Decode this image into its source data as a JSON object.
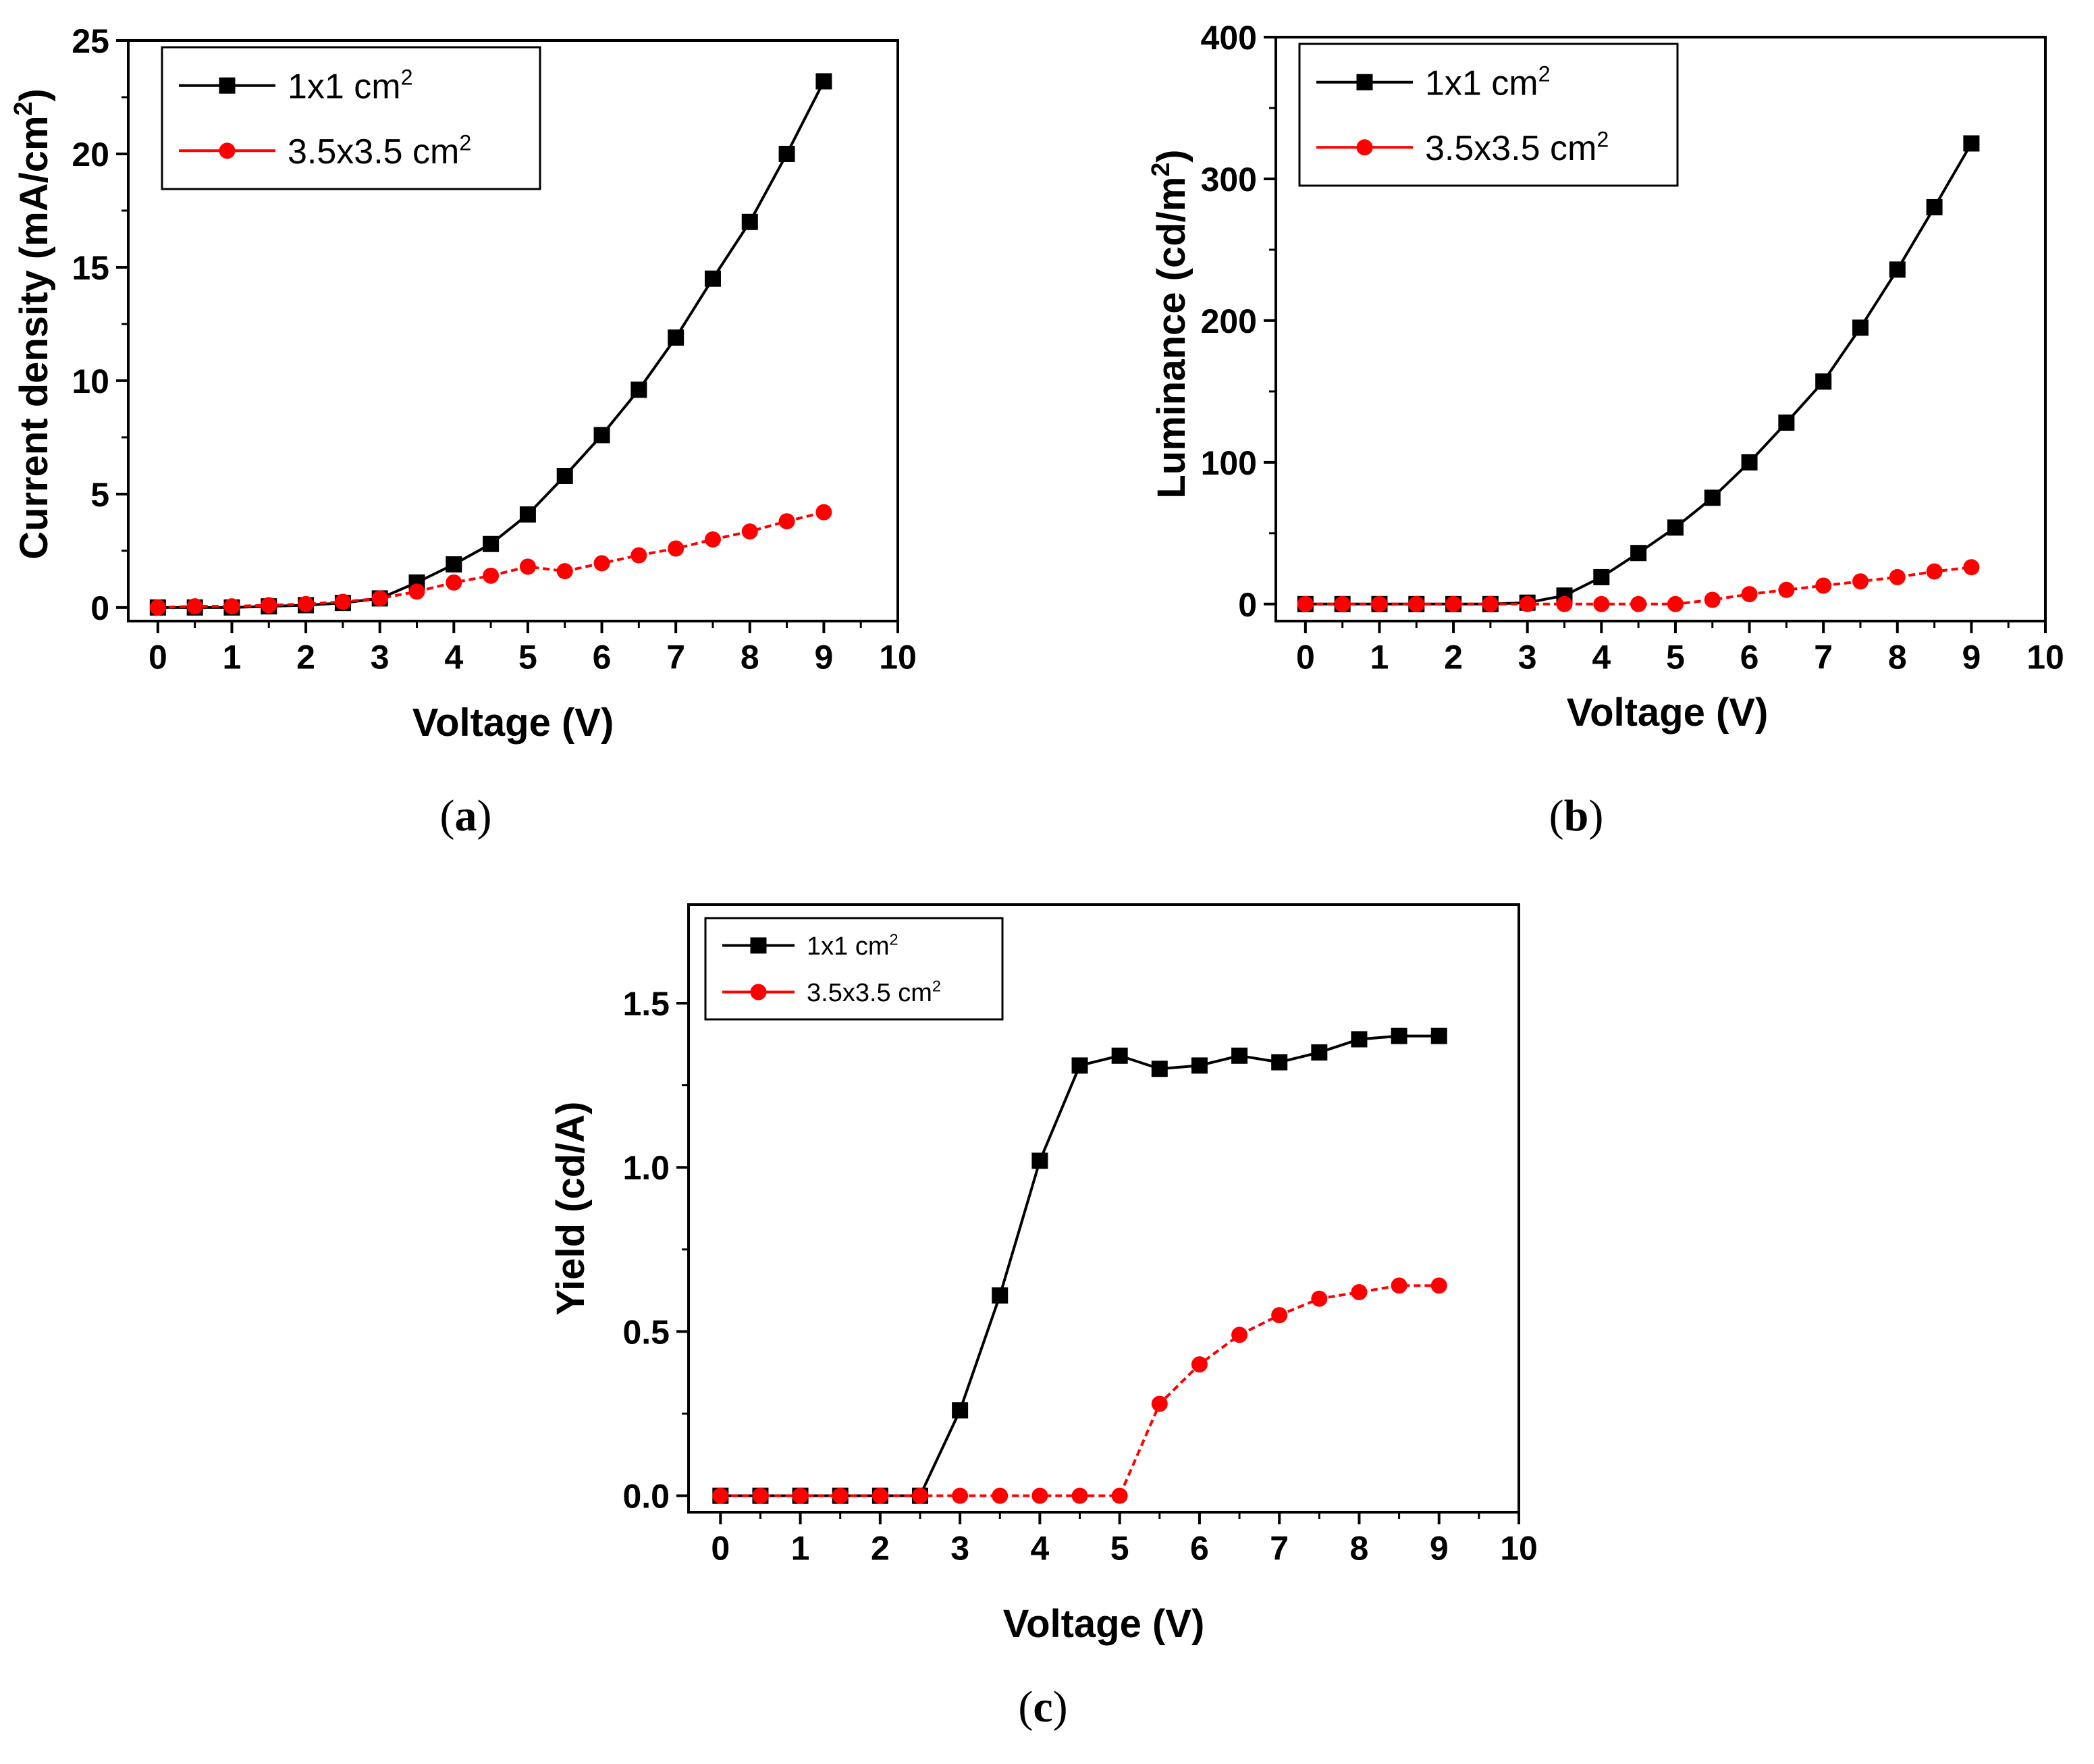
{
  "chart_data": [
    {
      "id": "a",
      "type": "line",
      "caption_prefix": "(",
      "caption_letter": "a",
      "caption_suffix": ")",
      "xlabel": "Voltage (V)",
      "ylabel": "Current density (mA/cm",
      "ylabel_sup": "2",
      "ylabel_tail": ")",
      "xlim": [
        -0.4,
        10
      ],
      "ylim": [
        -0.6,
        25
      ],
      "xticks": [
        0,
        1,
        2,
        3,
        4,
        5,
        6,
        7,
        8,
        9,
        10
      ],
      "yticks": [
        0,
        5,
        10,
        15,
        20,
        25
      ],
      "x": [
        0,
        0.5,
        1,
        1.5,
        2,
        2.5,
        3,
        3.5,
        4,
        4.5,
        5,
        5.5,
        6,
        6.5,
        7,
        7.5,
        8,
        8.5,
        9
      ],
      "legend_position": "top-left",
      "series": [
        {
          "name": "1x1 cm",
          "sup": "2",
          "color": "#000000",
          "marker": "square",
          "values": [
            0,
            0,
            0,
            0.05,
            0.1,
            0.2,
            0.4,
            1.1,
            1.9,
            2.8,
            4.1,
            5.8,
            7.6,
            9.6,
            11.9,
            14.5,
            17.0,
            20.0,
            23.2
          ]
        },
        {
          "name": "3.5x3.5 cm",
          "sup": "2",
          "color": "#ff0000",
          "marker": "circle",
          "values": [
            0,
            0.05,
            0.05,
            0.1,
            0.15,
            0.25,
            0.4,
            0.7,
            1.1,
            1.4,
            1.8,
            1.6,
            1.95,
            2.3,
            2.6,
            3.0,
            3.35,
            3.8,
            4.2
          ]
        }
      ]
    },
    {
      "id": "b",
      "type": "line",
      "caption_prefix": "(",
      "caption_letter": "b",
      "caption_suffix": ")",
      "xlabel": "Voltage (V)",
      "ylabel": "Luminance (cd/m",
      "ylabel_sup": "2",
      "ylabel_tail": ")",
      "xlim": [
        -0.4,
        10
      ],
      "ylim": [
        -12,
        400
      ],
      "xticks": [
        0,
        1,
        2,
        3,
        4,
        5,
        6,
        7,
        8,
        9,
        10
      ],
      "yticks": [
        0,
        100,
        200,
        300,
        400
      ],
      "x": [
        0,
        0.5,
        1,
        1.5,
        2,
        2.5,
        3,
        3.5,
        4,
        4.5,
        5,
        5.5,
        6,
        6.5,
        7,
        7.5,
        8,
        8.5,
        9
      ],
      "legend_position": "top-left",
      "series": [
        {
          "name": "1x1 cm",
          "sup": "2",
          "color": "#000000",
          "marker": "square",
          "values": [
            0,
            0,
            0,
            0,
            0,
            0,
            1,
            6,
            19,
            36,
            54,
            75,
            100,
            128,
            157,
            195,
            236,
            280,
            325
          ]
        },
        {
          "name": "3.5x3.5 cm",
          "sup": "2",
          "color": "#ff0000",
          "marker": "circle",
          "values": [
            0,
            0,
            0,
            0,
            0,
            0,
            0,
            0,
            0,
            0,
            0,
            3,
            7,
            10,
            13,
            16,
            19,
            23,
            26
          ]
        }
      ]
    },
    {
      "id": "c",
      "type": "line",
      "caption_prefix": "(",
      "caption_letter": "c",
      "caption_suffix": ")",
      "xlabel": "Voltage (V)",
      "ylabel": "Yield (cd/A)",
      "ylabel_sup": "",
      "ylabel_tail": "",
      "xlim": [
        -0.4,
        10
      ],
      "ylim": [
        -0.05,
        1.8
      ],
      "xticks": [
        0,
        1,
        2,
        3,
        4,
        5,
        6,
        7,
        8,
        9,
        10
      ],
      "yticks": [
        0.0,
        0.5,
        1.0,
        1.5
      ],
      "ytick_labels": [
        "0.0",
        "0.5",
        "1.0",
        "1.5"
      ],
      "x": [
        0,
        0.5,
        1,
        1.5,
        2,
        2.5,
        3,
        3.5,
        4,
        4.5,
        5,
        5.5,
        6,
        6.5,
        7,
        7.5,
        8,
        8.5,
        9
      ],
      "legend_position": "top-left",
      "series": [
        {
          "name": "1x1 cm",
          "sup": "2",
          "color": "#000000",
          "marker": "square",
          "values": [
            0,
            0,
            0,
            0,
            0,
            0,
            0.26,
            0.61,
            1.02,
            1.31,
            1.34,
            1.3,
            1.31,
            1.34,
            1.32,
            1.35,
            1.39,
            1.4,
            1.4
          ]
        },
        {
          "name": "3.5x3.5 cm",
          "sup": "2",
          "color": "#ff0000",
          "marker": "circle",
          "values": [
            0,
            0,
            0,
            0,
            0,
            0,
            0,
            0,
            0,
            0,
            0,
            0.28,
            0.4,
            0.49,
            0.55,
            0.6,
            0.62,
            0.64,
            0.64
          ]
        }
      ]
    }
  ]
}
